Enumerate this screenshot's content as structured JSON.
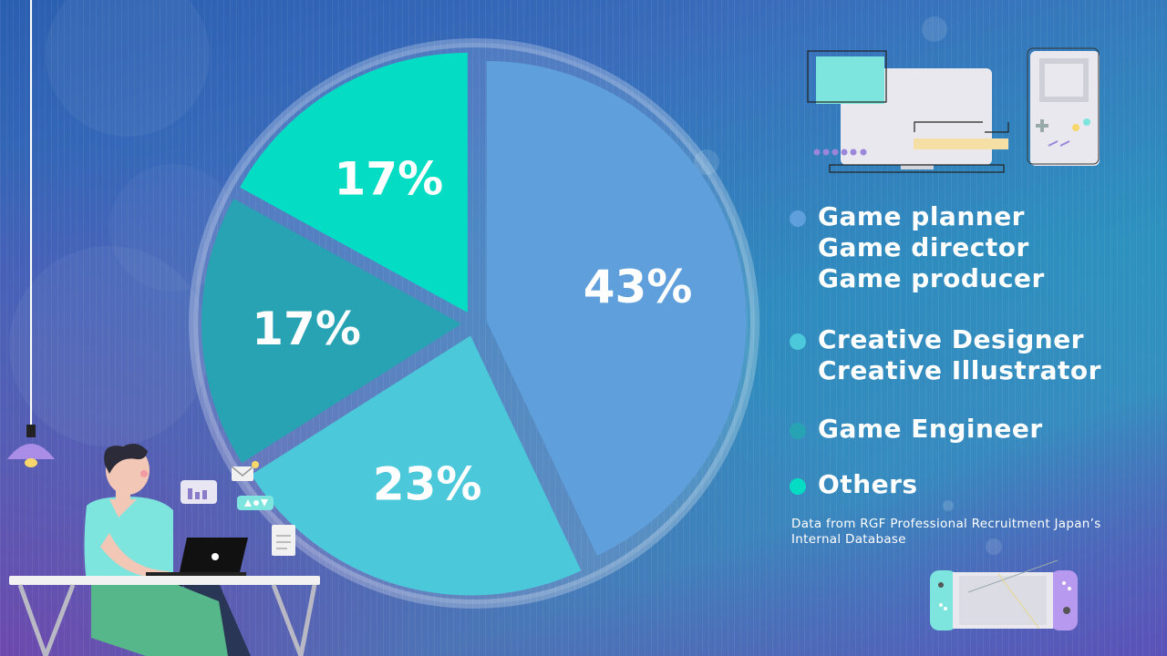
{
  "chart_data": {
    "type": "pie",
    "slices": [
      {
        "value": 43,
        "label": "43%",
        "color": "#5fa0dc"
      },
      {
        "value": 23,
        "label": "23%",
        "color": "#4cc8db"
      },
      {
        "value": 17,
        "label": "17%",
        "color": "#27a3b3"
      },
      {
        "value": 17,
        "label": "17%",
        "color": "#05dcc4"
      }
    ],
    "legend": [
      {
        "lines": [
          "Game planner",
          "Game director",
          "Game producer"
        ],
        "color": "#5fa0dc"
      },
      {
        "lines": [
          "Creative Designer",
          "Creative Illustrator"
        ],
        "color": "#4cc8db"
      },
      {
        "lines": [
          "Game Engineer"
        ],
        "color": "#27a3b3"
      },
      {
        "lines": [
          "Others"
        ],
        "color": "#05dcc4"
      }
    ],
    "legend_placement": "right"
  },
  "source_note": {
    "line1": "Data from RGF Professional Recruitment Japan’s",
    "line2": "Internal Database"
  },
  "decorations": {
    "illustrations": [
      "person-at-laptop-illustration",
      "retro-computer-icon",
      "handheld-console-icon",
      "switch-console-icon",
      "pendant-lamp-icon"
    ]
  }
}
